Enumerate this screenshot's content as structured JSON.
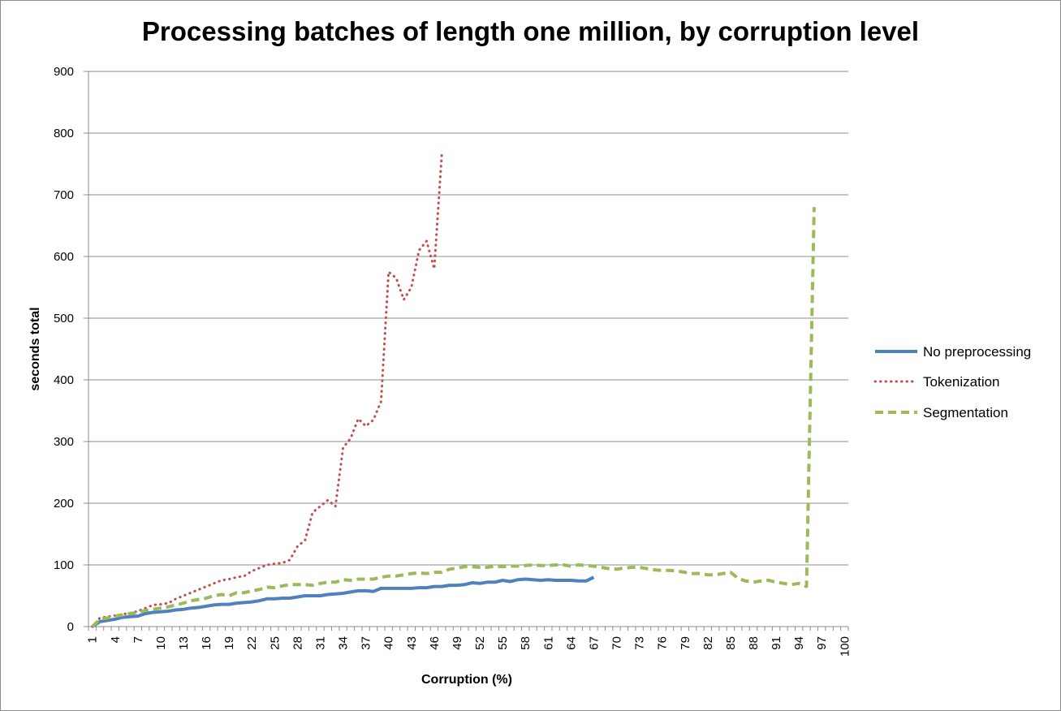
{
  "chart_data": {
    "type": "line",
    "title": "Processing batches of length one million, by corruption level",
    "xlabel": "Corruption  (%)",
    "ylabel": "seconds total",
    "xlim": [
      1,
      100
    ],
    "ylim": [
      0,
      900
    ],
    "yticks": [
      0,
      100,
      200,
      300,
      400,
      500,
      600,
      700,
      800,
      900
    ],
    "xtick_labels": [
      "1",
      "4",
      "7",
      "10",
      "13",
      "16",
      "19",
      "22",
      "25",
      "28",
      "31",
      "34",
      "37",
      "40",
      "43",
      "46",
      "49",
      "52",
      "55",
      "58",
      "61",
      "64",
      "67",
      "70",
      "73",
      "76",
      "79",
      "82",
      "85",
      "88",
      "91",
      "94",
      "97",
      "100"
    ],
    "grid": "horizontal",
    "legend_position": "right",
    "series": [
      {
        "name": "No preprocessing",
        "color": "#4f81bd",
        "style": "solid",
        "x": [
          1,
          2,
          3,
          4,
          5,
          6,
          7,
          8,
          9,
          10,
          11,
          12,
          13,
          14,
          15,
          16,
          17,
          18,
          19,
          20,
          21,
          22,
          23,
          24,
          25,
          26,
          27,
          28,
          29,
          30,
          31,
          32,
          33,
          34,
          35,
          36,
          37,
          38,
          39,
          40,
          41,
          42,
          43,
          44,
          45,
          46,
          47,
          48,
          49,
          50,
          51,
          52,
          53,
          54,
          55,
          56,
          57,
          58,
          59,
          60,
          61,
          62,
          63,
          64,
          65,
          66,
          67
        ],
        "y": [
          0,
          8,
          10,
          12,
          15,
          16,
          17,
          21,
          23,
          24,
          25,
          27,
          28,
          30,
          31,
          33,
          35,
          36,
          36,
          38,
          39,
          40,
          42,
          45,
          45,
          46,
          46,
          48,
          50,
          50,
          50,
          52,
          53,
          54,
          56,
          58,
          58,
          57,
          62,
          62,
          62,
          62,
          62,
          63,
          63,
          65,
          65,
          67,
          67,
          68,
          71,
          70,
          72,
          72,
          75,
          73,
          76,
          77,
          76,
          75,
          76,
          75,
          75,
          75,
          74,
          74,
          80
        ]
      },
      {
        "name": "Tokenization",
        "color": "#c0504d",
        "style": "dotted",
        "x": [
          1,
          2,
          3,
          4,
          5,
          6,
          7,
          8,
          9,
          10,
          11,
          12,
          13,
          14,
          15,
          16,
          17,
          18,
          19,
          20,
          21,
          22,
          23,
          24,
          25,
          26,
          27,
          28,
          29,
          30,
          31,
          32,
          33,
          34,
          35,
          36,
          37,
          38,
          39,
          40,
          41,
          42,
          43,
          44,
          45,
          46,
          47
        ],
        "y": [
          0,
          14,
          16,
          18,
          20,
          22,
          25,
          30,
          35,
          36,
          38,
          45,
          50,
          55,
          60,
          65,
          70,
          75,
          77,
          80,
          82,
          90,
          95,
          100,
          102,
          103,
          108,
          130,
          140,
          185,
          195,
          205,
          195,
          290,
          305,
          337,
          325,
          335,
          365,
          575,
          565,
          530,
          550,
          610,
          625,
          580,
          765
        ]
      },
      {
        "name": "Segmentation",
        "color": "#9bbb59",
        "style": "dashed",
        "x": [
          1,
          2,
          3,
          4,
          5,
          6,
          7,
          8,
          9,
          10,
          11,
          12,
          13,
          14,
          15,
          16,
          17,
          18,
          19,
          20,
          21,
          22,
          23,
          24,
          25,
          26,
          27,
          28,
          29,
          30,
          31,
          32,
          33,
          34,
          35,
          36,
          37,
          38,
          39,
          40,
          41,
          42,
          43,
          44,
          45,
          46,
          47,
          48,
          49,
          50,
          51,
          52,
          53,
          54,
          55,
          56,
          57,
          58,
          59,
          60,
          61,
          62,
          63,
          64,
          65,
          66,
          67,
          68,
          69,
          70,
          71,
          72,
          73,
          74,
          75,
          76,
          77,
          78,
          79,
          80,
          81,
          82,
          83,
          84,
          85,
          86,
          87,
          88,
          89,
          90,
          91,
          92,
          93,
          94,
          95,
          96
        ],
        "y": [
          0,
          12,
          14,
          17,
          19,
          21,
          23,
          26,
          28,
          30,
          32,
          35,
          38,
          42,
          44,
          46,
          50,
          52,
          50,
          55,
          55,
          58,
          60,
          64,
          63,
          66,
          68,
          68,
          68,
          67,
          70,
          72,
          72,
          76,
          75,
          77,
          77,
          77,
          80,
          82,
          82,
          84,
          86,
          87,
          86,
          88,
          88,
          93,
          95,
          97,
          97,
          96,
          96,
          98,
          97,
          98,
          98,
          99,
          100,
          99,
          99,
          100,
          100,
          98,
          100,
          99,
          98,
          96,
          94,
          93,
          95,
          96,
          96,
          94,
          92,
          91,
          91,
          90,
          88,
          86,
          86,
          84,
          84,
          86,
          88,
          78,
          74,
          72,
          74,
          75,
          72,
          70,
          68,
          70,
          65,
          680
        ]
      }
    ]
  }
}
